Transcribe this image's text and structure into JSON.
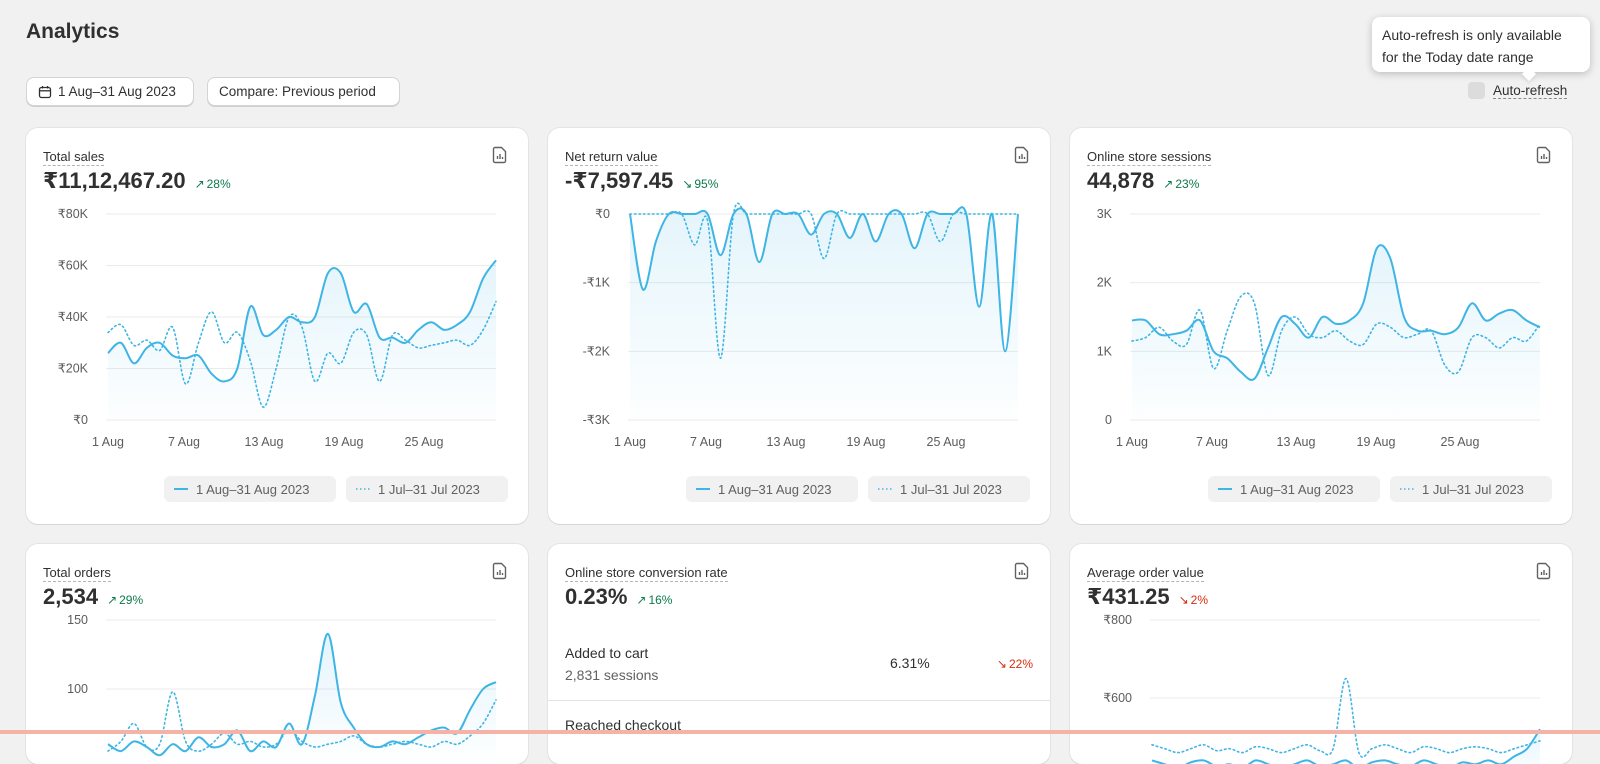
{
  "page": {
    "title": "Analytics"
  },
  "toolbar": {
    "date_range": "1 Aug–31 Aug 2023",
    "compare": "Compare: Previous period",
    "auto_refresh_label": "Auto-refresh",
    "tooltip": "Auto-refresh is only available for the Today date range"
  },
  "legend": {
    "current": "1 Aug–31 Aug 2023",
    "previous": "1 Jul–31 Jul 2023"
  },
  "colors": {
    "accent": "#3eb5e5",
    "positive": "#0c7a4b",
    "negative": "#d82c0d"
  },
  "cards": [
    {
      "label": "Total sales",
      "value": "₹11,12,467.20",
      "trend": "28%",
      "trend_dir": "up",
      "x_ticks": [
        "1 Aug",
        "7 Aug",
        "13 Aug",
        "19 Aug",
        "25 Aug"
      ],
      "y_ticks": [
        "₹80K",
        "₹60K",
        "₹40K",
        "₹20K",
        "₹0"
      ]
    },
    {
      "label": "Net return value",
      "value": "-₹7,597.45",
      "trend": "95%",
      "trend_dir": "down-good",
      "x_ticks": [
        "1 Aug",
        "7 Aug",
        "13 Aug",
        "19 Aug",
        "25 Aug"
      ],
      "y_ticks": [
        "₹0",
        "-₹1K",
        "-₹2K",
        "-₹3K"
      ]
    },
    {
      "label": "Online store sessions",
      "value": "44,878",
      "trend": "23%",
      "trend_dir": "up",
      "x_ticks": [
        "1 Aug",
        "7 Aug",
        "13 Aug",
        "19 Aug",
        "25 Aug"
      ],
      "y_ticks": [
        "3K",
        "2K",
        "1K",
        "0"
      ]
    },
    {
      "label": "Total orders",
      "value": "2,534",
      "trend": "29%",
      "trend_dir": "up",
      "y_ticks": [
        "150",
        "100"
      ]
    },
    {
      "label": "Online store conversion rate",
      "value": "0.23%",
      "trend": "16%",
      "trend_dir": "up",
      "rows": [
        {
          "name": "Added to cart",
          "sub": "2,831 sessions",
          "pct": "6.31%",
          "trend": "22%",
          "trend_dir": "down"
        },
        {
          "name": "Reached checkout",
          "sub": "",
          "pct": "",
          "trend": "",
          "trend_dir": ""
        }
      ]
    },
    {
      "label": "Average order value",
      "value": "₹431.25",
      "trend": "2%",
      "trend_dir": "down",
      "y_ticks": [
        "₹800",
        "₹600"
      ]
    }
  ],
  "chart_data": [
    {
      "type": "line",
      "title": "Total sales",
      "xlabel": "",
      "ylabel": "",
      "ylim": [
        0,
        80000
      ],
      "x_ticks": [
        "1 Aug",
        "7 Aug",
        "13 Aug",
        "19 Aug",
        "25 Aug"
      ],
      "series": [
        {
          "name": "1 Aug–31 Aug 2023",
          "values": [
            26000,
            30000,
            22000,
            28000,
            30000,
            25000,
            24000,
            25000,
            18000,
            15000,
            20000,
            44000,
            33000,
            35000,
            40000,
            38000,
            40000,
            57000,
            57000,
            42000,
            45000,
            32000,
            32000,
            30000,
            35000,
            38000,
            35000,
            37000,
            42000,
            55000,
            62000
          ]
        },
        {
          "name": "1 Jul–31 Jul 2023",
          "values": [
            34000,
            37000,
            29000,
            31000,
            27000,
            36000,
            14000,
            30000,
            42000,
            30000,
            34000,
            23000,
            5000,
            20000,
            40000,
            36000,
            15000,
            26000,
            22000,
            34000,
            33000,
            15000,
            33000,
            31000,
            28000,
            29000,
            30000,
            31000,
            29000,
            35000,
            46000
          ]
        }
      ]
    },
    {
      "type": "line",
      "title": "Net return value",
      "xlabel": "",
      "ylabel": "",
      "ylim": [
        -3000,
        0
      ],
      "x_ticks": [
        "1 Aug",
        "7 Aug",
        "13 Aug",
        "19 Aug",
        "25 Aug"
      ],
      "series": [
        {
          "name": "1 Aug–31 Aug 2023",
          "values": [
            0,
            -1100,
            -400,
            0,
            0,
            0,
            0,
            -600,
            0,
            0,
            -700,
            0,
            0,
            0,
            -300,
            0,
            0,
            -350,
            0,
            -400,
            0,
            0,
            -500,
            0,
            0,
            0,
            0,
            -1350,
            0,
            -2000,
            0
          ]
        },
        {
          "name": "1 Jul–31 Jul 2023",
          "values": [
            0,
            0,
            0,
            0,
            0,
            -450,
            -100,
            -2100,
            0,
            0,
            0,
            0,
            0,
            0,
            0,
            -650,
            0,
            0,
            0,
            0,
            0,
            0,
            0,
            0,
            -400,
            0,
            0,
            0,
            0,
            0,
            0
          ]
        }
      ]
    },
    {
      "type": "line",
      "title": "Online store sessions",
      "xlabel": "",
      "ylabel": "",
      "ylim": [
        0,
        3000
      ],
      "x_ticks": [
        "1 Aug",
        "7 Aug",
        "13 Aug",
        "19 Aug",
        "25 Aug"
      ],
      "series": [
        {
          "name": "1 Aug–31 Aug 2023",
          "values": [
            1450,
            1450,
            1250,
            1250,
            1300,
            1450,
            1000,
            900,
            700,
            600,
            1050,
            1500,
            1400,
            1200,
            1500,
            1400,
            1450,
            1700,
            2500,
            2350,
            1500,
            1300,
            1300,
            1250,
            1350,
            1700,
            1450,
            1550,
            1600,
            1450,
            1350
          ]
        },
        {
          "name": "1 Jul–31 Jul 2023",
          "values": [
            1150,
            1200,
            1350,
            1150,
            1100,
            1600,
            750,
            1300,
            1800,
            1700,
            650,
            1300,
            1500,
            1250,
            1200,
            1300,
            1150,
            1100,
            1400,
            1350,
            1200,
            1250,
            1300,
            800,
            700,
            1200,
            1200,
            1050,
            1200,
            1150,
            1400
          ]
        }
      ]
    },
    {
      "type": "line",
      "title": "Total orders",
      "xlabel": "",
      "ylabel": "",
      "ylim": [
        50,
        150
      ],
      "series": [
        {
          "name": "1 Aug–31 Aug 2023",
          "values": [
            60,
            55,
            62,
            58,
            52,
            60,
            55,
            65,
            58,
            60,
            70,
            55,
            62,
            58,
            75,
            60,
            95,
            140,
            90,
            72,
            60,
            58,
            62,
            60,
            65,
            70,
            72,
            68,
            85,
            100,
            105
          ]
        },
        {
          "name": "1 Jul–31 Jul 2023",
          "values": [
            55,
            62,
            75,
            58,
            60,
            98,
            62,
            55,
            60,
            68,
            60,
            62,
            58,
            60,
            70,
            62,
            58,
            60,
            62,
            66,
            60,
            58,
            60,
            62,
            60,
            58,
            62,
            60,
            66,
            75,
            92
          ]
        }
      ]
    },
    {
      "type": "line",
      "title": "Average order value",
      "xlabel": "",
      "ylabel": "",
      "ylim": [
        400,
        800
      ],
      "series": [
        {
          "name": "1 Aug–31 Aug 2023",
          "values": [
            440,
            430,
            420,
            435,
            440,
            425,
            430,
            420,
            440,
            430,
            420,
            430,
            440,
            425,
            430,
            440,
            420,
            435,
            440,
            430,
            425,
            440,
            430,
            420,
            435,
            430,
            440,
            430,
            450,
            470,
            520
          ]
        },
        {
          "name": "1 Jul–31 Jul 2023",
          "values": [
            480,
            470,
            460,
            470,
            480,
            465,
            470,
            460,
            475,
            470,
            460,
            470,
            480,
            465,
            470,
            650,
            460,
            470,
            480,
            470,
            460,
            475,
            470,
            460,
            470,
            475,
            470,
            460,
            470,
            480,
            490
          ]
        }
      ]
    }
  ]
}
